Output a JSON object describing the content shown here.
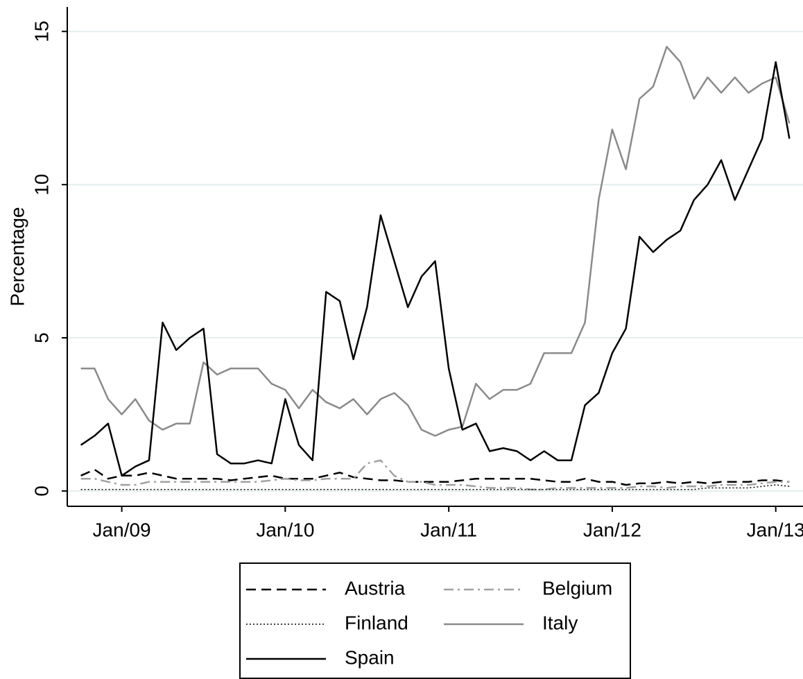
{
  "chart_data": {
    "type": "line",
    "y_label": "Percentage",
    "x": [
      "2008-10",
      "2008-11",
      "2008-12",
      "2009-01",
      "2009-02",
      "2009-03",
      "2009-04",
      "2009-05",
      "2009-06",
      "2009-07",
      "2009-08",
      "2009-09",
      "2009-10",
      "2009-11",
      "2009-12",
      "2010-01",
      "2010-02",
      "2010-03",
      "2010-04",
      "2010-05",
      "2010-06",
      "2010-07",
      "2010-08",
      "2010-09",
      "2010-10",
      "2010-11",
      "2010-12",
      "2011-01",
      "2011-02",
      "2011-03",
      "2011-04",
      "2011-05",
      "2011-06",
      "2011-07",
      "2011-08",
      "2011-09",
      "2011-10",
      "2011-11",
      "2011-12",
      "2012-01",
      "2012-02",
      "2012-03",
      "2012-04",
      "2012-05",
      "2012-06",
      "2012-07",
      "2012-08",
      "2012-09",
      "2012-10",
      "2012-11",
      "2012-12",
      "2013-01",
      "2013-02"
    ],
    "xlim": [
      "2008-09",
      "2013-03"
    ],
    "xticks": [
      {
        "value": "2009-01",
        "label": "Jan/09"
      },
      {
        "value": "2010-01",
        "label": "Jan/10"
      },
      {
        "value": "2011-01",
        "label": "Jan/11"
      },
      {
        "value": "2012-01",
        "label": "Jan/12"
      },
      {
        "value": "2013-01",
        "label": "Jan/13"
      }
    ],
    "ylim": [
      -0.5,
      15.8
    ],
    "yticks": [
      0,
      5,
      10,
      15
    ],
    "grid": true,
    "series": [
      {
        "name": "Austria",
        "color": "#000000",
        "dash": "dashed",
        "values": [
          0.5,
          0.7,
          0.4,
          0.5,
          0.5,
          0.6,
          0.5,
          0.4,
          0.4,
          0.4,
          0.4,
          0.35,
          0.4,
          0.45,
          0.5,
          0.4,
          0.4,
          0.4,
          0.5,
          0.6,
          0.45,
          0.4,
          0.35,
          0.35,
          0.3,
          0.3,
          0.3,
          0.3,
          0.35,
          0.4,
          0.4,
          0.4,
          0.4,
          0.4,
          0.35,
          0.3,
          0.3,
          0.4,
          0.3,
          0.3,
          0.2,
          0.25,
          0.25,
          0.3,
          0.25,
          0.3,
          0.25,
          0.3,
          0.3,
          0.3,
          0.35,
          0.35,
          0.3
        ]
      },
      {
        "name": "Belgium",
        "color": "#a0a0a0",
        "dash": "dashdot",
        "values": [
          0.4,
          0.4,
          0.3,
          0.2,
          0.2,
          0.3,
          0.3,
          0.3,
          0.3,
          0.3,
          0.3,
          0.3,
          0.3,
          0.3,
          0.35,
          0.4,
          0.35,
          0.35,
          0.4,
          0.4,
          0.4,
          0.9,
          1.0,
          0.5,
          0.3,
          0.3,
          0.2,
          0.2,
          0.2,
          0.15,
          0.1,
          0.1,
          0.1,
          0.05,
          0.05,
          0.1,
          0.1,
          0.1,
          0.1,
          0.1,
          0.1,
          0.15,
          0.15,
          0.1,
          0.15,
          0.15,
          0.15,
          0.2,
          0.2,
          0.2,
          0.25,
          0.3,
          0.3
        ]
      },
      {
        "name": "Finland",
        "color": "#000000",
        "dash": "dotted",
        "values": [
          0.05,
          0.05,
          0.05,
          0.05,
          0.05,
          0.05,
          0.05,
          0.05,
          0.05,
          0.05,
          0.05,
          0.05,
          0.05,
          0.05,
          0.05,
          0.05,
          0.05,
          0.05,
          0.05,
          0.05,
          0.05,
          0.05,
          0.05,
          0.05,
          0.05,
          0.05,
          0.05,
          0.05,
          0.05,
          0.05,
          0.05,
          0.05,
          0.05,
          0.05,
          0.05,
          0.05,
          0.05,
          0.05,
          0.05,
          0.05,
          0.05,
          0.05,
          0.05,
          0.05,
          0.05,
          0.05,
          0.1,
          0.1,
          0.1,
          0.1,
          0.15,
          0.2,
          0.15
        ]
      },
      {
        "name": "Italy",
        "color": "#8a8a8a",
        "dash": "solid",
        "values": [
          4.0,
          4.0,
          3.0,
          2.5,
          3.0,
          2.3,
          2.0,
          2.2,
          2.2,
          4.2,
          3.8,
          4.0,
          4.0,
          4.0,
          3.5,
          3.3,
          2.7,
          3.3,
          2.9,
          2.7,
          3.0,
          2.5,
          3.0,
          3.2,
          2.8,
          2.0,
          1.8,
          2.0,
          2.1,
          3.5,
          3.0,
          3.3,
          3.3,
          3.5,
          4.5,
          4.5,
          4.5,
          5.5,
          9.5,
          11.8,
          10.5,
          12.8,
          13.2,
          14.5,
          14.0,
          12.8,
          13.5,
          13.0,
          13.5,
          13.0,
          13.3,
          13.5,
          12.0
        ]
      },
      {
        "name": "Spain",
        "color": "#000000",
        "dash": "solid",
        "values": [
          1.5,
          1.8,
          2.2,
          0.5,
          0.8,
          1.0,
          5.5,
          4.6,
          5.0,
          5.3,
          1.2,
          0.9,
          0.9,
          1.0,
          0.9,
          3.0,
          1.5,
          1.0,
          6.5,
          6.2,
          4.3,
          6.0,
          9.0,
          7.5,
          6.0,
          7.0,
          7.5,
          4.0,
          2.0,
          2.2,
          1.3,
          1.4,
          1.3,
          1.0,
          1.3,
          1.0,
          1.0,
          2.8,
          3.2,
          4.5,
          5.3,
          8.3,
          7.8,
          8.2,
          8.5,
          9.5,
          10.0,
          10.8,
          9.5,
          10.5,
          11.5,
          14.0,
          11.5
        ]
      }
    ]
  }
}
